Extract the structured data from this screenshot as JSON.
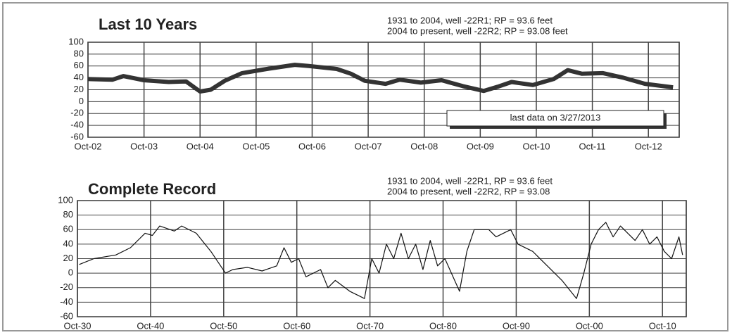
{
  "chart_data": [
    {
      "type": "line",
      "title": "Last 10 Years",
      "annotations": [
        "1931 to 2004, well -22R1; RP = 93.6 feet",
        "2004 to present, well -22R2; RP = 93.08 feet"
      ],
      "boxed_note": "last data on 3/27/2013",
      "x": [
        2002.75,
        2003.19,
        2003.38,
        2003.75,
        2004.19,
        2004.5,
        2004.75,
        2004.94,
        2005.19,
        2005.5,
        2005.94,
        2006.44,
        2006.69,
        2007.19,
        2007.44,
        2007.69,
        2008.06,
        2008.31,
        2008.69,
        2009.06,
        2009.44,
        2009.81,
        2010.06,
        2010.31,
        2010.69,
        2011.06,
        2011.31,
        2011.56,
        2011.94,
        2012.31,
        2012.69,
        2013.19
      ],
      "values": [
        38,
        37,
        43,
        36,
        33,
        34,
        17,
        20,
        35,
        48,
        55,
        62,
        60,
        55,
        47,
        35,
        30,
        37,
        32,
        36,
        26,
        18,
        25,
        33,
        28,
        38,
        53,
        47,
        48,
        40,
        30,
        24
      ],
      "color": "#333333",
      "line_width": 6,
      "xlim": [
        2002.75,
        2013.3
      ],
      "xticks": [
        {
          "value": 2002.75,
          "label": "Oct-02"
        },
        {
          "value": 2003.75,
          "label": "Oct-03"
        },
        {
          "value": 2004.75,
          "label": "Oct-04"
        },
        {
          "value": 2005.75,
          "label": "Oct-05"
        },
        {
          "value": 2006.75,
          "label": "Oct-06"
        },
        {
          "value": 2007.75,
          "label": "Oct-07"
        },
        {
          "value": 2008.75,
          "label": "Oct-08"
        },
        {
          "value": 2009.75,
          "label": "Oct-09"
        },
        {
          "value": 2010.75,
          "label": "Oct-10"
        },
        {
          "value": 2011.75,
          "label": "Oct-11"
        },
        {
          "value": 2012.75,
          "label": "Oct-12"
        }
      ],
      "ylim": [
        -60,
        100
      ],
      "yticks": [
        100,
        80,
        60,
        40,
        20,
        0,
        -20,
        -40,
        -60
      ],
      "grid": true
    },
    {
      "type": "line",
      "title": "Complete Record",
      "annotations": [
        "1931 to 2004, well -22R1, RP = 93.6 feet",
        "2004 to present, well -22R2, RP = 93.08"
      ],
      "x": [
        1931,
        1933,
        1936,
        1938,
        1940,
        1941,
        1942,
        1944,
        1945,
        1947,
        1949,
        1950,
        1951,
        1952,
        1954,
        1956,
        1958,
        1959,
        1960,
        1961,
        1962,
        1964,
        1965,
        1966,
        1968,
        1970,
        1971,
        1972,
        1973,
        1974,
        1975,
        1976,
        1977,
        1978,
        1979,
        1980,
        1981,
        1983,
        1984,
        1985,
        1987,
        1988,
        1990,
        1991,
        1993,
        1995,
        1997,
        1999,
        2000,
        2001,
        2002,
        2003,
        2004,
        2005,
        2006,
        2007,
        2008,
        2009,
        2010,
        2011,
        2012,
        2013,
        2013.5
      ],
      "values": [
        12,
        20,
        25,
        35,
        55,
        52,
        65,
        58,
        65,
        55,
        30,
        15,
        0,
        5,
        8,
        3,
        10,
        35,
        15,
        20,
        -5,
        5,
        -20,
        -10,
        -25,
        -35,
        20,
        0,
        40,
        20,
        55,
        20,
        40,
        5,
        45,
        10,
        20,
        -25,
        30,
        60,
        60,
        50,
        60,
        40,
        30,
        10,
        -10,
        -35,
        0,
        40,
        60,
        70,
        50,
        65,
        55,
        45,
        60,
        40,
        50,
        30,
        20,
        50,
        25
      ],
      "color": "#111111",
      "line_width": 1.2,
      "xlim": [
        1930.75,
        2014
      ],
      "xticks": [
        {
          "value": 1930.75,
          "label": "Oct-30"
        },
        {
          "value": 1940.75,
          "label": "Oct-40"
        },
        {
          "value": 1950.75,
          "label": "Oct-50"
        },
        {
          "value": 1960.75,
          "label": "Oct-60"
        },
        {
          "value": 1970.75,
          "label": "Oct-70"
        },
        {
          "value": 1980.75,
          "label": "Oct-80"
        },
        {
          "value": 1990.75,
          "label": "Oct-90"
        },
        {
          "value": 2000.75,
          "label": "Oct-00"
        },
        {
          "value": 2010.75,
          "label": "Oct-10"
        }
      ],
      "ylim": [
        -60,
        100
      ],
      "yticks": [
        100,
        80,
        60,
        40,
        20,
        0,
        -20,
        -40,
        -60
      ],
      "grid": true
    }
  ]
}
